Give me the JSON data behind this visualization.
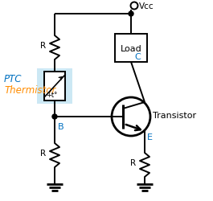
{
  "bg_color": "#ffffff",
  "line_color": "#000000",
  "label_color_blue": "#0070C0",
  "label_color_orange": "#FF8C00",
  "ptc_bg_color": "#cce8f4",
  "vcc_label": "Vcc",
  "load_label": "Load",
  "transistor_label": "Transistor",
  "ptc_label1": "PTC",
  "ptc_label2": "Thermistor",
  "ptc_inner_label": "+t°",
  "B_label": "B",
  "C_label": "C",
  "E_label": "E",
  "R_label": "R",
  "figsize": [
    2.65,
    2.51
  ],
  "dpi": 100
}
